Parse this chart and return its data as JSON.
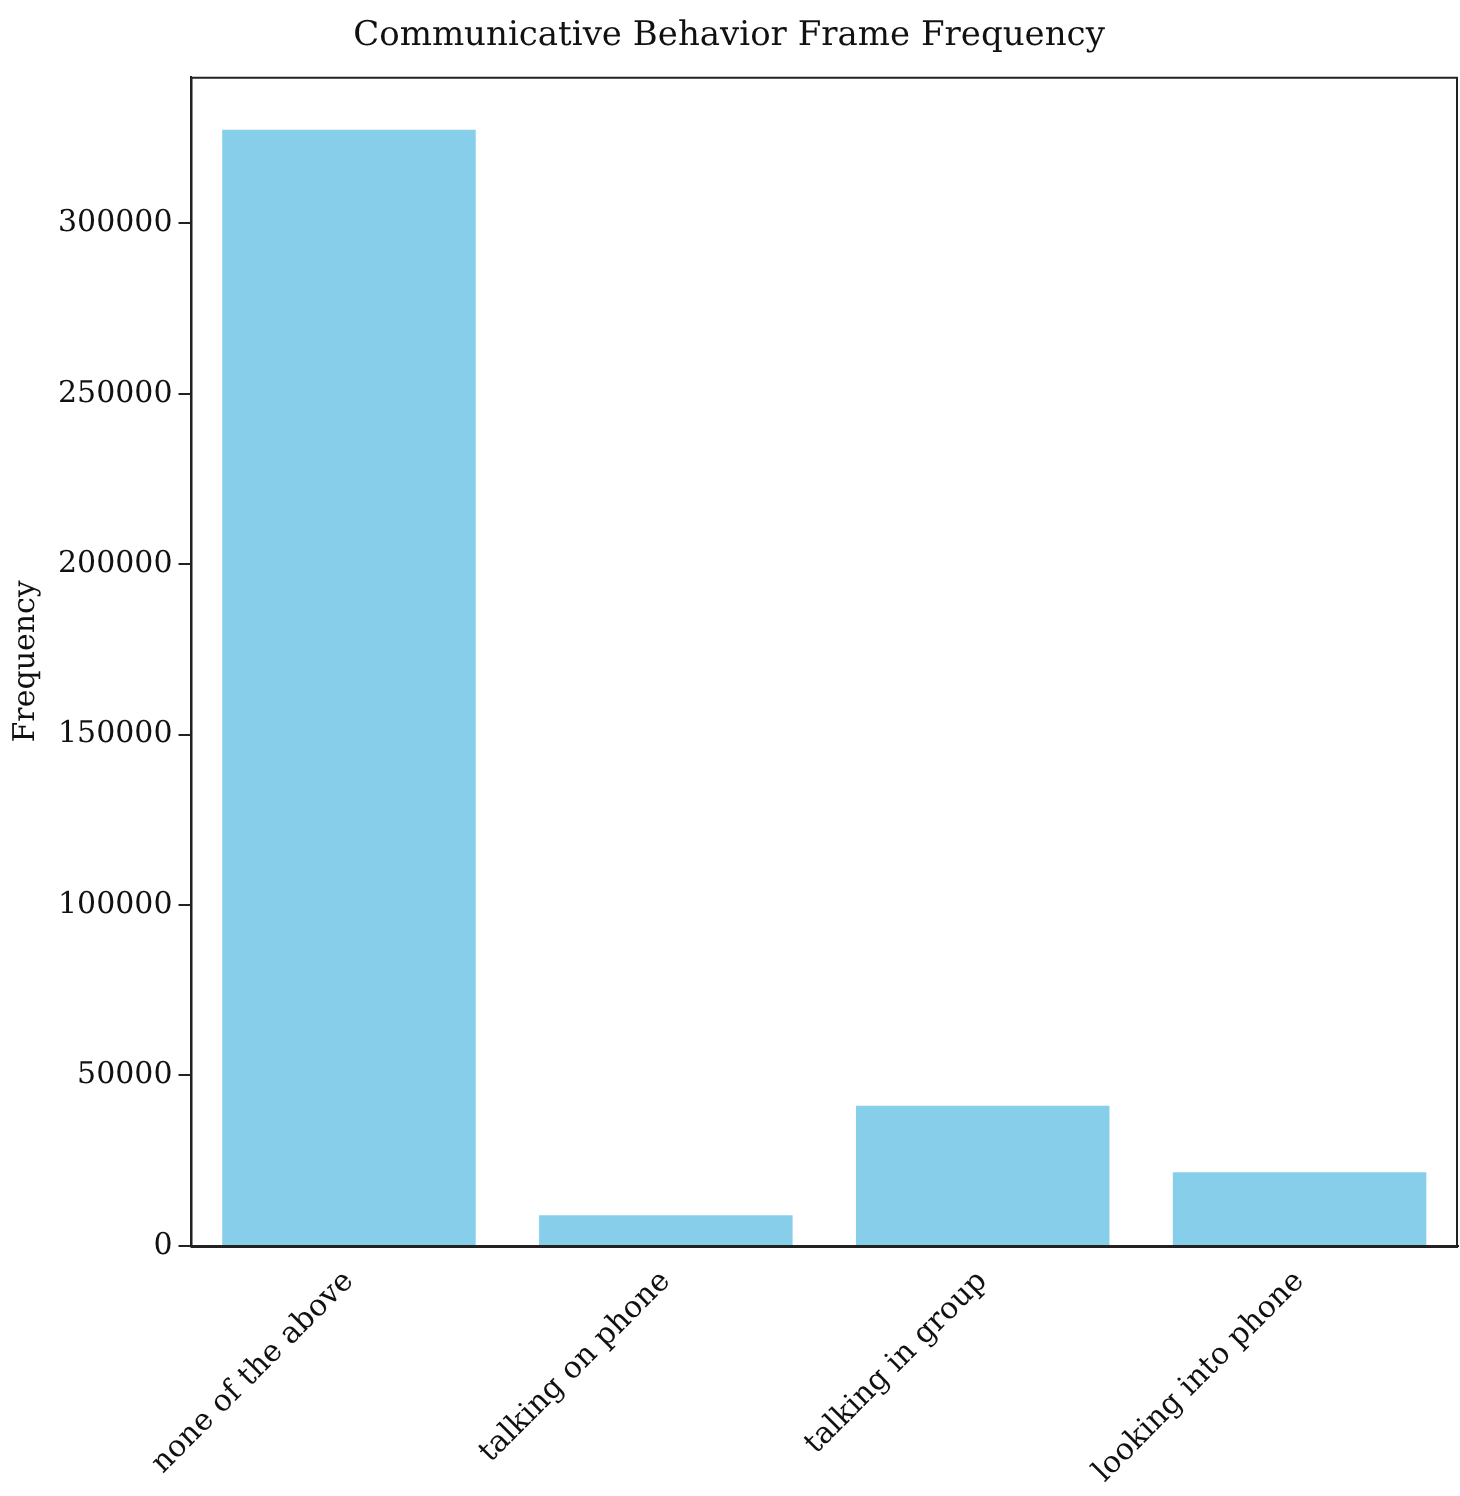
{
  "chart_data": {
    "type": "bar",
    "title": "Communicative Behavior Frame Frequency",
    "ylabel": "Frequency",
    "categories": [
      "none of the above",
      "talking on phone",
      "talking in group",
      "looking into phone"
    ],
    "values": [
      327500,
      9000,
      41100,
      21600
    ],
    "color": "#87ceeb",
    "ylim": [
      0,
      343000
    ],
    "yticks": [
      0,
      50000,
      100000,
      150000,
      200000,
      250000,
      300000
    ],
    "grid": false,
    "legend": false
  }
}
